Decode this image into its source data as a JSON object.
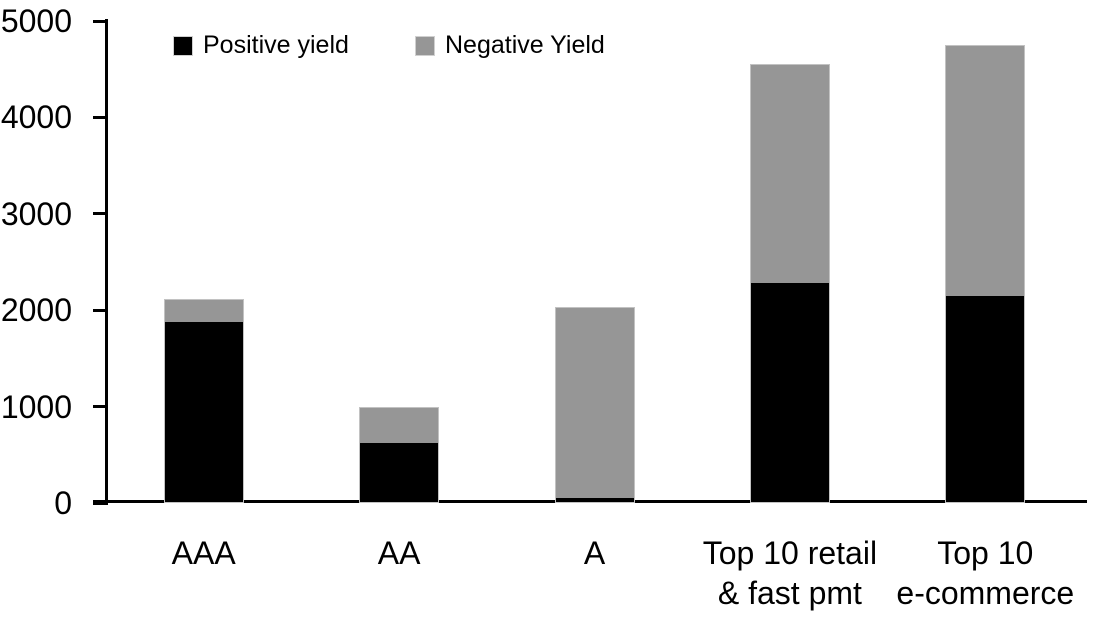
{
  "chart_data": {
    "type": "bar",
    "stacked": true,
    "title": "",
    "xlabel": "",
    "ylabel": "",
    "categories": [
      "AAA",
      "AA",
      "A",
      "Top 10 retail\n& fast pmt",
      "Top 10\ne-commerce"
    ],
    "series": [
      {
        "name": "Positive yield",
        "color": "#000000",
        "values": [
          1890,
          630,
          40,
          2280,
          2150
        ]
      },
      {
        "name": "Negative Yield",
        "color": "#969696",
        "values": [
          230,
          370,
          1990,
          2270,
          2600
        ]
      }
    ],
    "totals": [
      2120,
      1000,
      2030,
      4550,
      4750
    ],
    "ylim": [
      0,
      5000
    ],
    "yticks": [
      0,
      1000,
      2000,
      3000,
      4000,
      5000
    ],
    "grid": false,
    "legend_position": "top-inside",
    "axis_color": "#000000",
    "background_color": "#ffffff"
  },
  "legend": {
    "items": [
      {
        "label": "Positive yield"
      },
      {
        "label": "Negative Yield"
      }
    ]
  }
}
